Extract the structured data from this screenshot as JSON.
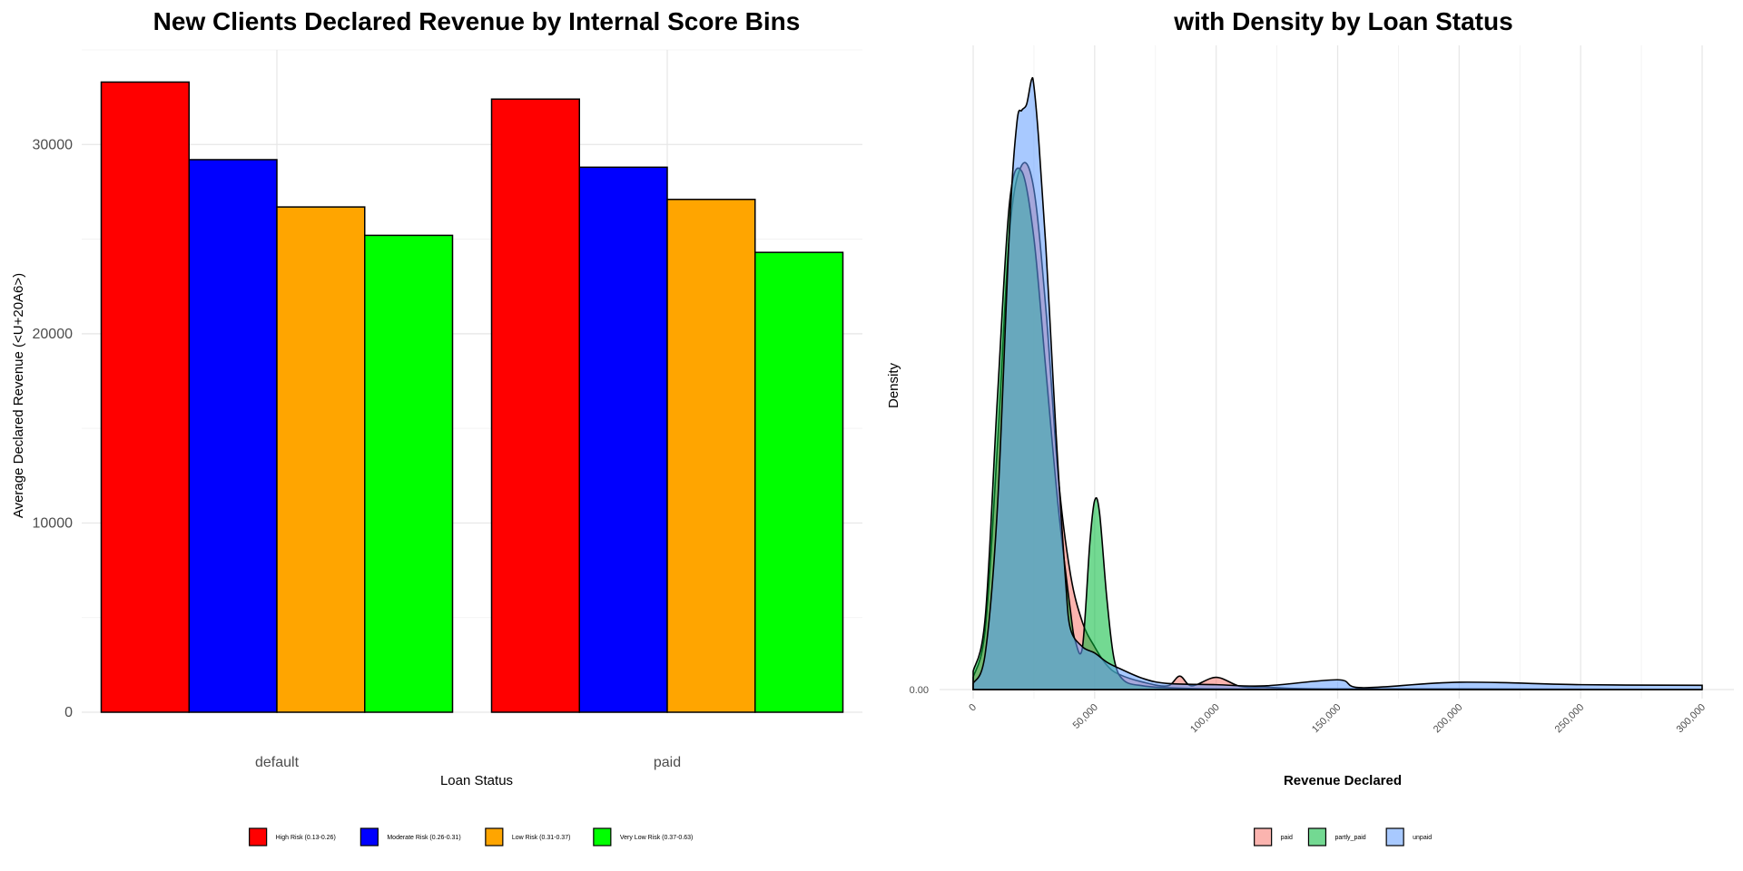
{
  "chart_data": [
    {
      "type": "bar",
      "title": "New Clients Declared Revenue by Internal Score Bins",
      "xlabel": "Loan Status",
      "ylabel": "Average Declared Revenue (<U+20A6>)",
      "ylim": [
        0,
        35000
      ],
      "yticks": [
        "0",
        "10000",
        "20000",
        "30000"
      ],
      "categories": [
        "default",
        "paid"
      ],
      "grid": true,
      "legend_position": "bottom",
      "series": [
        {
          "name": "High Risk (0.13-0.26)",
          "color": "#ff0000",
          "values": [
            33300,
            32400
          ]
        },
        {
          "name": "Moderate Risk (0.26-0.31)",
          "color": "#0000ff",
          "values": [
            29200,
            28800
          ]
        },
        {
          "name": "Low Risk (0.31-0.37)",
          "color": "#ffa500",
          "values": [
            26700,
            27100
          ]
        },
        {
          "name": "Very Low Risk (0.37-0.63)",
          "color": "#00ff00",
          "values": [
            25200,
            24300
          ]
        }
      ]
    },
    {
      "type": "area",
      "title": "with Density by Loan Status",
      "xlabel": "Revenue Declared",
      "ylabel": "Density",
      "xlim": [
        0,
        300000
      ],
      "xticks": [
        "0",
        "50,000",
        "100,000",
        "150,000",
        "200,000",
        "250,000",
        "300,000"
      ],
      "yticks": [
        "0.00"
      ],
      "grid": true,
      "legend_position": "bottom",
      "series": [
        {
          "name": "paid",
          "color": "#f8766d",
          "x": [
            0,
            5000,
            10000,
            15000,
            20000,
            25000,
            30000,
            35000,
            40000,
            45000,
            50000,
            55000,
            60000,
            70000,
            80000,
            85000,
            90000,
            100000,
            110000,
            120000,
            130000,
            150000,
            200000,
            250000,
            300000
          ],
          "y": [
            0.02,
            0.1,
            0.4,
            0.75,
            0.86,
            0.82,
            0.62,
            0.35,
            0.19,
            0.11,
            0.07,
            0.04,
            0.025,
            0.012,
            0.006,
            0.022,
            0.006,
            0.02,
            0.005,
            0.004,
            0.002,
            0.001,
            0.001,
            0.0005,
            0
          ]
        },
        {
          "name": "partly_paid",
          "color": "#00ba38",
          "x": [
            0,
            5000,
            10000,
            15000,
            20000,
            25000,
            30000,
            35000,
            40000,
            42000,
            45000,
            48000,
            50000,
            52000,
            55000,
            58000,
            62000,
            70000,
            80000,
            100000,
            150000,
            200000,
            250000,
            300000
          ],
          "y": [
            0.03,
            0.12,
            0.48,
            0.8,
            0.85,
            0.74,
            0.52,
            0.3,
            0.13,
            0.08,
            0.07,
            0.24,
            0.31,
            0.29,
            0.15,
            0.05,
            0.015,
            0.006,
            0.003,
            0.001,
            0.0005,
            0,
            0,
            0
          ]
        },
        {
          "name": "unpaid",
          "color": "#619cff",
          "x": [
            0,
            5000,
            10000,
            15000,
            18000,
            20000,
            22000,
            24000,
            25000,
            27000,
            30000,
            33000,
            35000,
            38000,
            40000,
            45000,
            50000,
            55000,
            60000,
            70000,
            80000,
            100000,
            120000,
            150000,
            160000,
            200000,
            250000,
            300000
          ],
          "y": [
            0.01,
            0.06,
            0.3,
            0.76,
            0.93,
            0.95,
            0.96,
            1.0,
            0.99,
            0.9,
            0.72,
            0.5,
            0.36,
            0.18,
            0.1,
            0.07,
            0.06,
            0.045,
            0.035,
            0.018,
            0.01,
            0.008,
            0.006,
            0.016,
            0.003,
            0.012,
            0.008,
            0.007
          ]
        }
      ]
    }
  ]
}
